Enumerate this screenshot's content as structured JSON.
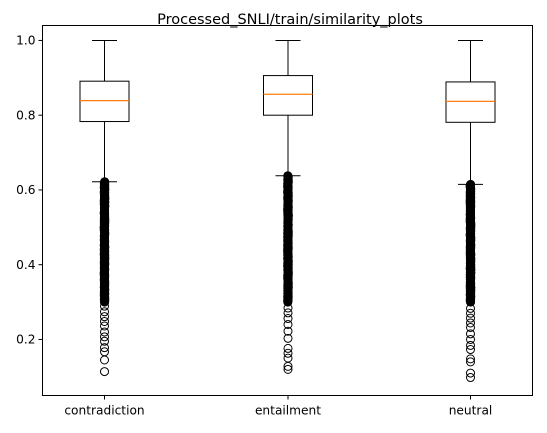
{
  "chart_data": {
    "type": "box",
    "title": "Processed_SNLI/train/similarity_plots",
    "xlabel": "",
    "ylabel": "",
    "ylim": [
      0.05,
      1.04
    ],
    "yticks": [
      0.2,
      0.4,
      0.6,
      0.8,
      1.0
    ],
    "ytick_labels": [
      "0.2",
      "0.4",
      "0.6",
      "0.8",
      "1.0"
    ],
    "grid": false,
    "categories": [
      "contradiction",
      "entailment",
      "neutral"
    ],
    "boxes": [
      {
        "name": "contradiction",
        "whisker_low": 0.622,
        "q1": 0.783,
        "median": 0.839,
        "q3": 0.891,
        "whisker_high": 1.0,
        "outlier_range": [
          0.118,
          0.622
        ],
        "sparse_outliers": [
          0.114,
          0.145,
          0.167,
          0.178,
          0.195,
          0.207,
          0.22,
          0.236,
          0.248,
          0.261,
          0.274,
          0.289
        ]
      },
      {
        "name": "entailment",
        "whisker_low": 0.638,
        "q1": 0.8,
        "median": 0.856,
        "q3": 0.906,
        "whisker_high": 1.0,
        "outlier_range": [
          0.125,
          0.638
        ],
        "sparse_outliers": [
          0.12,
          0.128,
          0.15,
          0.163,
          0.176,
          0.203,
          0.222,
          0.24,
          0.256,
          0.271,
          0.284
        ]
      },
      {
        "name": "neutral",
        "whisker_low": 0.615,
        "q1": 0.781,
        "median": 0.837,
        "q3": 0.889,
        "whisker_high": 1.0,
        "outlier_range": [
          0.1,
          0.615
        ],
        "sparse_outliers": [
          0.098,
          0.11,
          0.14,
          0.148,
          0.173,
          0.184,
          0.2,
          0.215,
          0.232,
          0.244,
          0.257,
          0.27,
          0.283
        ]
      }
    ],
    "colors": {
      "box": "#000000",
      "median": "#ff7f0e",
      "outlier": "#000000",
      "background": "#ffffff"
    }
  }
}
